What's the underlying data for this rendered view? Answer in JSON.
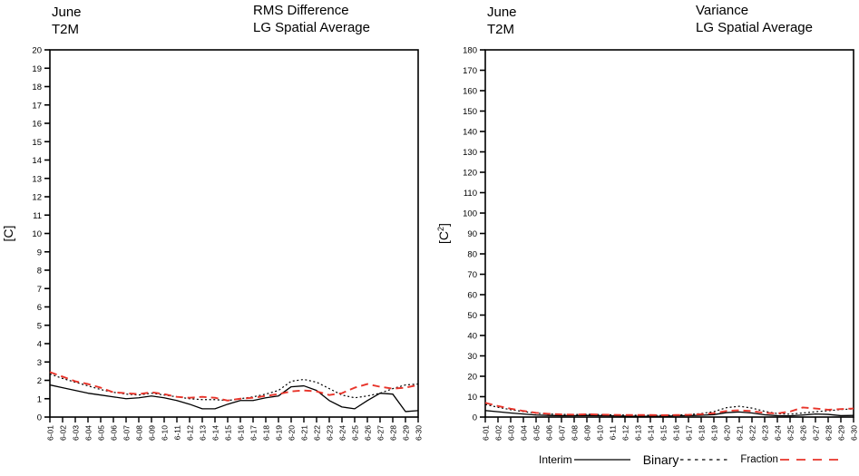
{
  "legend": {
    "items": [
      {
        "label": "Interim",
        "style": "solid",
        "color": "#000000"
      },
      {
        "label": "Binary",
        "style": "short-dash",
        "color": "#000000"
      },
      {
        "label": "Fraction",
        "style": "long-dash",
        "color": "#e8342a"
      }
    ],
    "position": "bottom-right"
  },
  "chart_data": [
    {
      "type": "line",
      "header": {
        "line1": "June",
        "line2": "T2M"
      },
      "title": {
        "line1": "RMS Difference",
        "line2": "LG Spatial Average"
      },
      "ylabel": "[C]",
      "ylabel_parts": [
        "[C",
        "",
        "]"
      ],
      "ylim": [
        0,
        20
      ],
      "ystep": 1,
      "grid": false,
      "x_labels": [
        "6-01",
        "6-02",
        "6-03",
        "6-04",
        "6-05",
        "6-06",
        "6-07",
        "6-08",
        "6-09",
        "6-10",
        "6-11",
        "6-12",
        "6-13",
        "6-14",
        "6-15",
        "6-16",
        "6-17",
        "6-18",
        "6-19",
        "6-20",
        "6-21",
        "6-22",
        "6-23",
        "6-24",
        "6-25",
        "6-26",
        "6-27",
        "6-28",
        "6-29",
        "6-30"
      ],
      "series": [
        {
          "name": "Interim",
          "color": "#000000",
          "dash": "solid",
          "values": [
            1.75,
            1.6,
            1.45,
            1.3,
            1.2,
            1.1,
            1.0,
            1.05,
            1.15,
            1.05,
            0.9,
            0.7,
            0.45,
            0.45,
            0.7,
            0.9,
            0.9,
            1.05,
            1.15,
            1.65,
            1.7,
            1.45,
            0.9,
            0.55,
            0.45,
            0.9,
            1.3,
            1.25,
            0.3,
            0.35
          ]
        },
        {
          "name": "Binary",
          "color": "#000000",
          "dash": "short",
          "values": [
            2.35,
            2.1,
            1.9,
            1.7,
            1.5,
            1.35,
            1.25,
            1.2,
            1.3,
            1.2,
            1.1,
            1.0,
            0.95,
            0.95,
            0.9,
            1.0,
            1.1,
            1.25,
            1.45,
            1.95,
            2.05,
            1.9,
            1.55,
            1.2,
            1.05,
            1.15,
            1.3,
            1.55,
            1.75,
            1.8
          ]
        },
        {
          "name": "Fraction",
          "color": "#e8342a",
          "dash": "long",
          "values": [
            2.45,
            2.2,
            1.95,
            1.8,
            1.6,
            1.35,
            1.3,
            1.25,
            1.35,
            1.25,
            1.1,
            1.05,
            1.1,
            1.05,
            0.9,
            1.0,
            1.05,
            1.15,
            1.25,
            1.4,
            1.45,
            1.4,
            1.2,
            1.3,
            1.6,
            1.8,
            1.65,
            1.55,
            1.6,
            1.75
          ]
        }
      ]
    },
    {
      "type": "line",
      "header": {
        "line1": "June",
        "line2": "T2M"
      },
      "title": {
        "line1": "Variance",
        "line2": "LG Spatial Average"
      },
      "ylabel": "[C2]",
      "ylabel_parts": [
        "[C",
        "2",
        "]"
      ],
      "ylim": [
        0,
        180
      ],
      "ystep": 10,
      "grid": false,
      "x_labels": [
        "6-01",
        "6-02",
        "6-03",
        "6-04",
        "6-05",
        "6-06",
        "6-07",
        "6-08",
        "6-09",
        "6-10",
        "6-11",
        "6-12",
        "6-13",
        "6-14",
        "6-15",
        "6-16",
        "6-17",
        "6-18",
        "6-19",
        "6-20",
        "6-21",
        "6-22",
        "6-23",
        "6-24",
        "6-25",
        "6-26",
        "6-27",
        "6-28",
        "6-29",
        "6-30"
      ],
      "series": [
        {
          "name": "Interim",
          "color": "#000000",
          "dash": "solid",
          "values": [
            3.2,
            2.6,
            2.0,
            1.5,
            1.0,
            0.8,
            0.7,
            0.7,
            0.8,
            0.7,
            0.6,
            0.5,
            0.4,
            0.4,
            0.4,
            0.6,
            0.7,
            0.9,
            1.2,
            2.2,
            2.5,
            2.0,
            1.1,
            0.7,
            0.6,
            1.0,
            1.5,
            1.3,
            0.7,
            0.8
          ]
        },
        {
          "name": "Binary",
          "color": "#000000",
          "dash": "short",
          "values": [
            6.2,
            4.8,
            3.6,
            2.7,
            1.9,
            1.5,
            1.3,
            1.2,
            1.4,
            1.2,
            1.1,
            1.0,
            0.9,
            0.9,
            0.8,
            1.0,
            1.2,
            1.7,
            2.7,
            4.6,
            5.3,
            4.4,
            2.8,
            1.7,
            1.4,
            2.0,
            2.6,
            3.1,
            3.7,
            4.0
          ]
        },
        {
          "name": "Fraction",
          "color": "#e8342a",
          "dash": "long",
          "values": [
            7.0,
            5.4,
            4.1,
            3.0,
            2.1,
            1.6,
            1.3,
            1.2,
            1.4,
            1.2,
            1.1,
            1.0,
            1.0,
            1.0,
            0.9,
            1.0,
            1.1,
            1.4,
            1.9,
            3.0,
            3.3,
            2.9,
            2.0,
            1.8,
            2.7,
            4.7,
            4.2,
            3.6,
            3.9,
            4.2
          ]
        }
      ]
    }
  ]
}
